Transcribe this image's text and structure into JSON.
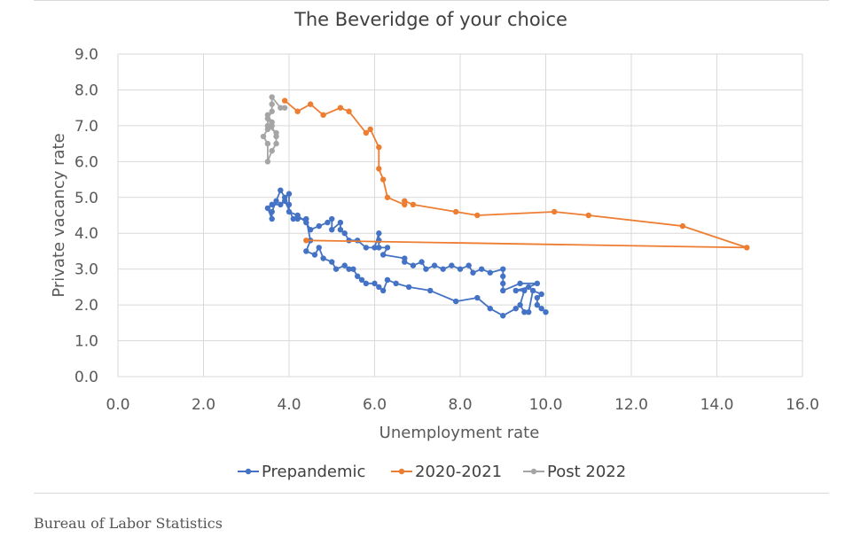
{
  "chart_data": {
    "type": "scatter",
    "title": "The Beveridge of your choice",
    "xlabel": "Unemployment rate",
    "ylabel": "Private vacancy rate",
    "xlim": [
      0,
      16
    ],
    "ylim": [
      0,
      9
    ],
    "x_ticks": [
      "0.0",
      "2.0",
      "4.0",
      "6.0",
      "8.0",
      "10.0",
      "12.0",
      "14.0",
      "16.0"
    ],
    "y_ticks": [
      "0.0",
      "1.0",
      "2.0",
      "3.0",
      "4.0",
      "5.0",
      "6.0",
      "7.0",
      "8.0",
      "9.0"
    ],
    "grid": true,
    "legend_position": "bottom",
    "series": [
      {
        "name": "Prepandemic",
        "color": "#4472c4",
        "points": [
          [
            10.0,
            1.8
          ],
          [
            9.9,
            1.9
          ],
          [
            9.8,
            2.0
          ],
          [
            9.8,
            2.2
          ],
          [
            9.9,
            2.3
          ],
          [
            9.7,
            2.4
          ],
          [
            9.6,
            1.8
          ],
          [
            9.5,
            1.8
          ],
          [
            9.4,
            2.0
          ],
          [
            9.5,
            2.4
          ],
          [
            9.3,
            2.4
          ],
          [
            9.6,
            2.5
          ],
          [
            9.8,
            2.6
          ],
          [
            9.4,
            2.6
          ],
          [
            9.0,
            2.4
          ],
          [
            9.0,
            2.6
          ],
          [
            9.0,
            2.8
          ],
          [
            9.0,
            3.0
          ],
          [
            8.7,
            2.9
          ],
          [
            8.5,
            3.0
          ],
          [
            8.3,
            2.9
          ],
          [
            8.2,
            3.1
          ],
          [
            8.0,
            3.0
          ],
          [
            7.8,
            3.1
          ],
          [
            7.6,
            3.0
          ],
          [
            7.4,
            3.1
          ],
          [
            7.2,
            3.0
          ],
          [
            7.1,
            3.2
          ],
          [
            6.9,
            3.1
          ],
          [
            6.7,
            3.2
          ],
          [
            6.7,
            3.3
          ],
          [
            6.2,
            3.4
          ],
          [
            6.3,
            3.6
          ],
          [
            6.1,
            3.6
          ],
          [
            6.1,
            3.8
          ],
          [
            6.1,
            4.0
          ],
          [
            6.0,
            3.6
          ],
          [
            5.8,
            3.6
          ],
          [
            5.6,
            3.8
          ],
          [
            5.4,
            3.8
          ],
          [
            5.3,
            4.0
          ],
          [
            5.2,
            4.1
          ],
          [
            5.2,
            4.3
          ],
          [
            5.0,
            4.1
          ],
          [
            5.0,
            4.4
          ],
          [
            4.9,
            4.3
          ],
          [
            4.7,
            4.2
          ],
          [
            4.5,
            4.1
          ],
          [
            4.4,
            4.3
          ],
          [
            4.2,
            4.5
          ],
          [
            4.0,
            4.6
          ],
          [
            4.0,
            4.8
          ],
          [
            4.0,
            5.1
          ],
          [
            3.9,
            5.0
          ],
          [
            3.8,
            5.2
          ],
          [
            3.7,
            4.9
          ],
          [
            3.6,
            4.6
          ],
          [
            3.6,
            4.4
          ],
          [
            3.5,
            4.7
          ],
          [
            3.6,
            4.8
          ],
          [
            3.8,
            4.8
          ],
          [
            3.9,
            4.9
          ],
          [
            4.1,
            4.4
          ],
          [
            4.2,
            4.4
          ],
          [
            4.4,
            4.4
          ],
          [
            4.5,
            3.8
          ],
          [
            4.4,
            3.5
          ],
          [
            4.6,
            3.4
          ],
          [
            4.7,
            3.6
          ],
          [
            4.8,
            3.3
          ],
          [
            5.0,
            3.2
          ],
          [
            5.1,
            3.0
          ],
          [
            5.3,
            3.1
          ],
          [
            5.4,
            3.0
          ],
          [
            5.5,
            3.0
          ],
          [
            5.6,
            2.8
          ],
          [
            5.7,
            2.7
          ],
          [
            5.8,
            2.6
          ],
          [
            6.0,
            2.6
          ],
          [
            6.1,
            2.5
          ],
          [
            6.2,
            2.4
          ],
          [
            6.3,
            2.7
          ],
          [
            6.5,
            2.6
          ],
          [
            6.8,
            2.5
          ],
          [
            7.3,
            2.4
          ],
          [
            7.9,
            2.1
          ],
          [
            8.4,
            2.2
          ],
          [
            8.7,
            1.9
          ],
          [
            9.0,
            1.7
          ],
          [
            9.3,
            1.9
          ]
        ]
      },
      {
        "name": "2020-2021",
        "color": "#ed7d31",
        "points": [
          [
            4.4,
            3.8
          ],
          [
            14.7,
            3.6
          ],
          [
            13.2,
            4.2
          ],
          [
            11.0,
            4.5
          ],
          [
            10.2,
            4.6
          ],
          [
            8.4,
            4.5
          ],
          [
            7.9,
            4.6
          ],
          [
            6.9,
            4.8
          ],
          [
            6.7,
            4.9
          ],
          [
            6.7,
            4.8
          ],
          [
            6.3,
            5.0
          ],
          [
            6.2,
            5.5
          ],
          [
            6.1,
            5.8
          ],
          [
            6.1,
            6.4
          ],
          [
            5.9,
            6.9
          ],
          [
            5.8,
            6.8
          ],
          [
            5.4,
            7.4
          ],
          [
            5.2,
            7.5
          ],
          [
            4.8,
            7.3
          ],
          [
            4.5,
            7.6
          ],
          [
            4.2,
            7.4
          ],
          [
            3.9,
            7.7
          ]
        ]
      },
      {
        "name": "Post 2022",
        "color": "#a5a5a5",
        "points": [
          [
            3.9,
            7.5
          ],
          [
            3.8,
            7.5
          ],
          [
            3.6,
            7.8
          ],
          [
            3.6,
            7.6
          ],
          [
            3.6,
            7.4
          ],
          [
            3.5,
            7.2
          ],
          [
            3.6,
            7.0
          ],
          [
            3.7,
            6.7
          ],
          [
            3.7,
            6.5
          ],
          [
            3.6,
            6.3
          ],
          [
            3.5,
            6.0
          ],
          [
            3.5,
            6.5
          ],
          [
            3.4,
            6.7
          ],
          [
            3.5,
            6.9
          ],
          [
            3.6,
            7.1
          ],
          [
            3.5,
            7.3
          ],
          [
            3.5,
            7.0
          ],
          [
            3.7,
            6.8
          ]
        ]
      }
    ]
  },
  "source_text": "Bureau of Labor Statistics"
}
